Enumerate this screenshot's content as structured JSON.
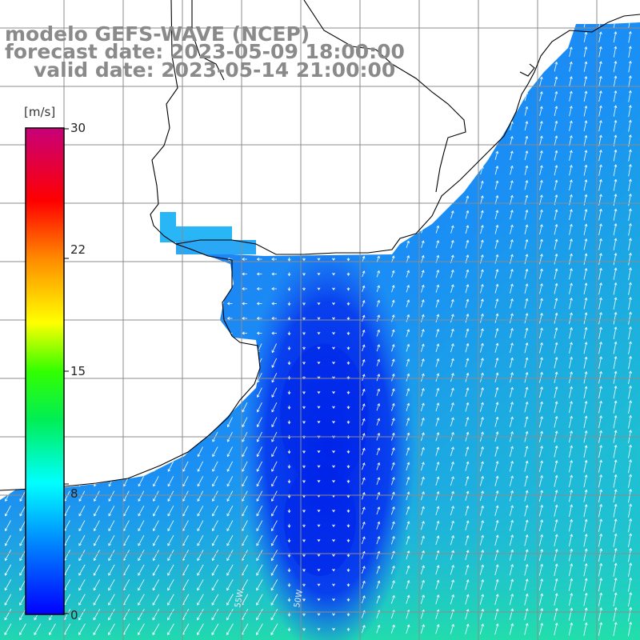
{
  "header": {
    "line1": "modelo GEFS-WAVE (NCEP)",
    "line2": "forecast date: 2023-05-09 18:00:00",
    "line3": "valid date: 2023-05-14 21:00:00"
  },
  "colorbar": {
    "units": "[m/s]",
    "ticks": [
      "30",
      "22",
      "15",
      "8",
      "0"
    ],
    "range": [
      0,
      30
    ],
    "colors": [
      "#0000ff",
      "#00aaff",
      "#00ffff",
      "#00ff00",
      "#ffff00",
      "#ff8800",
      "#ff0000",
      "#c8007a"
    ]
  },
  "map": {
    "ocean_colors": {
      "deep": "#0a30ee",
      "mid": "#1a70f6",
      "light": "#2ab0f8",
      "teal": "#20e0b0"
    },
    "land_color": "#ffffff",
    "coastline_color": "#000000",
    "grid_color": "#909090",
    "lon_labels": [
      "55W",
      "50W"
    ]
  }
}
